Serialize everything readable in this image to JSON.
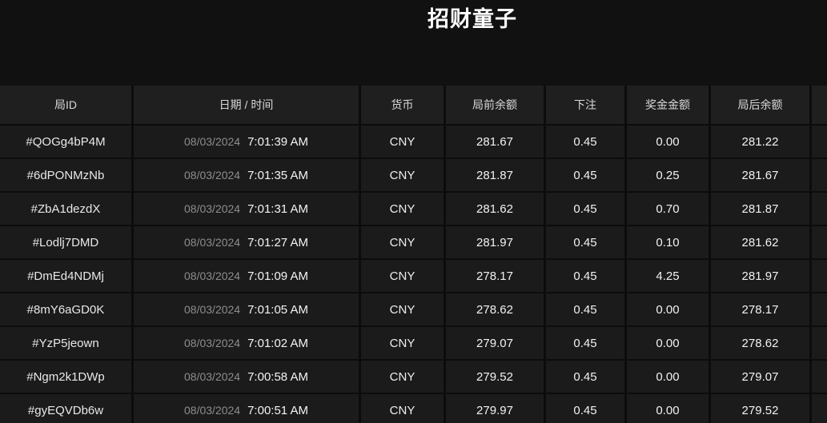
{
  "title": "招财童子",
  "colors": {
    "page_background": "#111111",
    "grid_gap": "#0c0c0c",
    "header_cell_background": "#1f1f1f",
    "row_cell_background": "#1b1b1b",
    "title_text": "#ffffff",
    "header_text": "#d9d9d9",
    "primary_text": "#ededed",
    "date_text": "#8d8d8d"
  },
  "table": {
    "columns": [
      "局ID",
      "日期 / 时间",
      "货币",
      "局前余额",
      "下注",
      "奖金金额",
      "局后余额"
    ],
    "rows": [
      {
        "id": "#QOGg4bP4M",
        "date": "08/03/2024",
        "time": "7:01:39 AM",
        "currency": "CNY",
        "balance_before": "281.67",
        "bet": "0.45",
        "prize": "0.00",
        "balance_after": "281.22"
      },
      {
        "id": "#6dPONMzNb",
        "date": "08/03/2024",
        "time": "7:01:35 AM",
        "currency": "CNY",
        "balance_before": "281.87",
        "bet": "0.45",
        "prize": "0.25",
        "balance_after": "281.67"
      },
      {
        "id": "#ZbA1dezdX",
        "date": "08/03/2024",
        "time": "7:01:31 AM",
        "currency": "CNY",
        "balance_before": "281.62",
        "bet": "0.45",
        "prize": "0.70",
        "balance_after": "281.87"
      },
      {
        "id": "#Lodlj7DMD",
        "date": "08/03/2024",
        "time": "7:01:27 AM",
        "currency": "CNY",
        "balance_before": "281.97",
        "bet": "0.45",
        "prize": "0.10",
        "balance_after": "281.62"
      },
      {
        "id": "#DmEd4NDMj",
        "date": "08/03/2024",
        "time": "7:01:09 AM",
        "currency": "CNY",
        "balance_before": "278.17",
        "bet": "0.45",
        "prize": "4.25",
        "balance_after": "281.97"
      },
      {
        "id": "#8mY6aGD0K",
        "date": "08/03/2024",
        "time": "7:01:05 AM",
        "currency": "CNY",
        "balance_before": "278.62",
        "bet": "0.45",
        "prize": "0.00",
        "balance_after": "278.17"
      },
      {
        "id": "#YzP5jeown",
        "date": "08/03/2024",
        "time": "7:01:02 AM",
        "currency": "CNY",
        "balance_before": "279.07",
        "bet": "0.45",
        "prize": "0.00",
        "balance_after": "278.62"
      },
      {
        "id": "#Ngm2k1DWp",
        "date": "08/03/2024",
        "time": "7:00:58 AM",
        "currency": "CNY",
        "balance_before": "279.52",
        "bet": "0.45",
        "prize": "0.00",
        "balance_after": "279.07"
      },
      {
        "id": "#gyEQVDb6w",
        "date": "08/03/2024",
        "time": "7:00:51 AM",
        "currency": "CNY",
        "balance_before": "279.97",
        "bet": "0.45",
        "prize": "0.00",
        "balance_after": "279.52"
      }
    ]
  }
}
